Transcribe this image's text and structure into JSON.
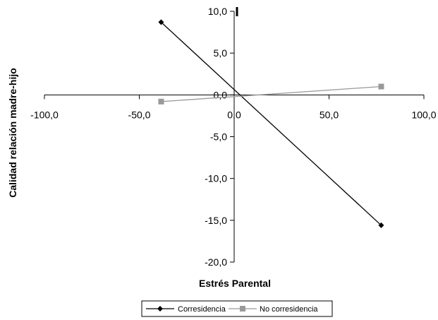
{
  "chart_data": {
    "type": "line",
    "title": "",
    "xlabel": "Estrés Parental",
    "ylabel": "Calidad relación madre-hijo",
    "xlim": [
      -100,
      100
    ],
    "ylim": [
      -20,
      10
    ],
    "x_ticks": [
      -100,
      -50,
      0,
      50,
      100
    ],
    "y_ticks": [
      10,
      5,
      0,
      -5,
      -10,
      -15,
      -20
    ],
    "x_tick_labels": [
      "-100,0",
      "-50,0",
      "0,0",
      "50,0",
      "100,0"
    ],
    "y_tick_labels": [
      "10,0",
      "5,0",
      "0,0",
      "-5,0",
      "-10,0",
      "-15,0",
      "-20,0"
    ],
    "legend_position": "bottom",
    "series": [
      {
        "name": "Corresidencia",
        "color": "#000000",
        "marker": "diamond",
        "points": [
          [
            -38.5,
            8.7
          ],
          [
            77.5,
            -15.6
          ]
        ]
      },
      {
        "name": "No corresidencia",
        "color": "#999999",
        "marker": "square",
        "points": [
          [
            -38.5,
            -0.8
          ],
          [
            77.5,
            1.0
          ]
        ]
      }
    ]
  }
}
